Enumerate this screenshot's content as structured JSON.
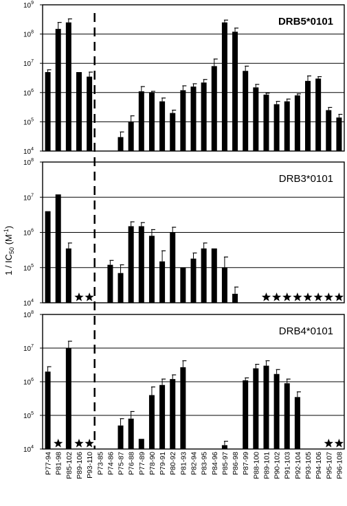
{
  "figure": {
    "ylabel": {
      "main": "1 / IC",
      "sub": "50",
      "unit_open": " (M",
      "unit_exp": "-1",
      "unit_close": ")"
    },
    "panel_titles": [
      "DRB5*0101",
      "DRB3*0101",
      "DRB4*0101"
    ]
  },
  "chart_data": [
    {
      "type": "bar",
      "title": "DRB5*0101",
      "yscale": "log",
      "ylim": [
        10000,
        1000000000
      ],
      "yticks": [
        {
          "base": "10",
          "exp": "4"
        },
        {
          "base": "10",
          "exp": "5"
        },
        {
          "base": "10",
          "exp": "6"
        },
        {
          "base": "10",
          "exp": "7"
        },
        {
          "base": "10",
          "exp": "8"
        },
        {
          "base": "10",
          "exp": "9"
        }
      ],
      "grid": true,
      "categories": [
        "P77-94",
        "P81-98",
        "P85-102",
        "P89-106",
        "P93-110",
        "P73-85",
        "P74-86",
        "P75-87",
        "P76-88",
        "P77-89",
        "P78-90",
        "P79-91",
        "P80-92",
        "P81-93",
        "P82-94",
        "P83-95",
        "P84-96",
        "P85-97",
        "P86-98",
        "P87-99",
        "P88-100",
        "P89-101",
        "P90-102",
        "P91-103",
        "P92-104",
        "P93-105",
        "P94-106",
        "P95-107",
        "P96-108"
      ],
      "values": [
        5000000,
        150000000,
        250000000,
        5000000,
        3500000,
        null,
        null,
        30000,
        100000,
        1100000,
        1000000,
        500000,
        200000,
        1200000,
        1600000,
        2200000,
        8000000,
        250000000,
        120000000,
        5500000,
        1500000,
        850000,
        400000,
        500000,
        800000,
        2500000,
        3000000,
        250000,
        140000
      ],
      "errors": [
        1000000,
        100000000,
        80000000,
        0,
        1500000,
        null,
        null,
        15000,
        60000,
        500000,
        100000,
        150000,
        50000,
        500000,
        400000,
        600000,
        6000000,
        50000000,
        40000000,
        2500000,
        400000,
        100000,
        100000,
        100000,
        100000,
        1200000,
        500000,
        60000,
        40000
      ],
      "stars": []
    },
    {
      "type": "bar",
      "title": "DRB3*0101",
      "yscale": "log",
      "ylim": [
        10000,
        100000000
      ],
      "yticks": [
        {
          "base": "10",
          "exp": "4"
        },
        {
          "base": "10",
          "exp": "5"
        },
        {
          "base": "10",
          "exp": "6"
        },
        {
          "base": "10",
          "exp": "7"
        },
        {
          "base": "10",
          "exp": "8"
        }
      ],
      "grid": true,
      "categories": [
        "P77-94",
        "P81-98",
        "P85-102",
        "P89-106",
        "P93-110",
        "P73-85",
        "P74-86",
        "P75-87",
        "P76-88",
        "P77-89",
        "P78-90",
        "P79-91",
        "P80-92",
        "P81-93",
        "P82-94",
        "P83-95",
        "P84-96",
        "P85-97",
        "P86-98",
        "P87-99",
        "P88-100",
        "P89-101",
        "P90-102",
        "P91-103",
        "P92-104",
        "P93-105",
        "P94-106",
        "P95-107",
        "P96-108"
      ],
      "values": [
        4000000,
        12000000,
        350000,
        null,
        null,
        null,
        120000,
        70000,
        1500000,
        1500000,
        800000,
        150000,
        1000000,
        100000,
        180000,
        350000,
        350000,
        100000,
        18000,
        null,
        null,
        null,
        null,
        null,
        null,
        null,
        null,
        null,
        null
      ],
      "errors": [
        0,
        0,
        150000,
        null,
        null,
        null,
        40000,
        50000,
        500000,
        400000,
        400000,
        150000,
        400000,
        0,
        80000,
        150000,
        0,
        100000,
        10000,
        null,
        null,
        null,
        null,
        null,
        null,
        null,
        null,
        null,
        null
      ],
      "stars": [
        3,
        4,
        21,
        22,
        23,
        24,
        25,
        26,
        27,
        28
      ]
    },
    {
      "type": "bar",
      "title": "DRB4*0101",
      "yscale": "log",
      "ylim": [
        10000,
        100000000
      ],
      "yticks": [
        {
          "base": "10",
          "exp": "4"
        },
        {
          "base": "10",
          "exp": "5"
        },
        {
          "base": "10",
          "exp": "6"
        },
        {
          "base": "10",
          "exp": "7"
        },
        {
          "base": "10",
          "exp": "8"
        }
      ],
      "grid": true,
      "categories": [
        "P77-94",
        "P81-98",
        "P85-102",
        "P89-106",
        "P93-110",
        "P73-85",
        "P74-86",
        "P75-87",
        "P76-88",
        "P77-89",
        "P78-90",
        "P79-91",
        "P80-92",
        "P81-93",
        "P82-94",
        "P83-95",
        "P84-96",
        "P85-97",
        "P86-98",
        "P87-99",
        "P88-100",
        "P89-101",
        "P90-102",
        "P91-103",
        "P92-104",
        "P93-105",
        "P94-106",
        "P95-107",
        "P96-108"
      ],
      "values": [
        2000000,
        null,
        10000000,
        null,
        null,
        null,
        null,
        50000,
        80000,
        20000,
        400000,
        800000,
        1200000,
        2700000,
        null,
        null,
        null,
        13000,
        null,
        1100000,
        2500000,
        3000000,
        1700000,
        900000,
        350000,
        null,
        null,
        null,
        null
      ],
      "errors": [
        800000,
        null,
        6000000,
        null,
        null,
        null,
        null,
        30000,
        50000,
        0,
        300000,
        400000,
        400000,
        1500000,
        null,
        null,
        null,
        4000,
        null,
        200000,
        800000,
        1200000,
        600000,
        300000,
        150000,
        null,
        null,
        null,
        null
      ],
      "stars": [
        1,
        3,
        4,
        27,
        28
      ]
    }
  ]
}
